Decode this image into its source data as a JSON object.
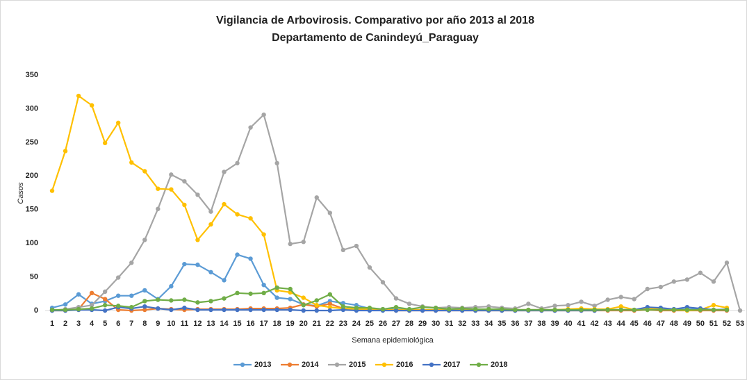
{
  "chart_data": {
    "type": "line",
    "title": "Vigilancia de Arbovirosis. Comparativo por año 2013 al 2018",
    "subtitle": "Departamento de Canindeyú_Paraguay",
    "x_label": "Semana epidemiológica",
    "y_label": "Casos",
    "categories": [
      1,
      2,
      3,
      4,
      5,
      6,
      7,
      8,
      9,
      10,
      11,
      12,
      13,
      14,
      15,
      16,
      17,
      18,
      19,
      20,
      21,
      22,
      23,
      24,
      25,
      26,
      27,
      28,
      29,
      30,
      31,
      32,
      33,
      34,
      35,
      36,
      37,
      38,
      39,
      40,
      41,
      42,
      43,
      44,
      45,
      46,
      47,
      48,
      49,
      50,
      51,
      52,
      53
    ],
    "ylim": [
      0,
      350
    ],
    "yticks": [
      0,
      50,
      100,
      150,
      200,
      250,
      300,
      350
    ],
    "grid": false,
    "legend": "bottom",
    "series": [
      {
        "name": "2013",
        "color": "#5b9bd5",
        "values": [
          4,
          9,
          24,
          10,
          14,
          22,
          22,
          30,
          17,
          36,
          69,
          68,
          57,
          45,
          83,
          77,
          38,
          19,
          17,
          9,
          7,
          14,
          11,
          8,
          3,
          2,
          2,
          1,
          1,
          1,
          1,
          1,
          1,
          1,
          1,
          1,
          1,
          1,
          1,
          1,
          1,
          1,
          1,
          1,
          1,
          2,
          2,
          1,
          2,
          2,
          1,
          2,
          null
        ]
      },
      {
        "name": "2014",
        "color": "#ed7d31",
        "values": [
          0,
          0,
          2,
          26,
          17,
          1,
          0,
          1,
          3,
          2,
          1,
          2,
          2,
          2,
          2,
          3,
          3,
          3,
          4,
          9,
          6,
          10,
          3,
          2,
          1,
          1,
          0,
          0,
          0,
          0,
          0,
          0,
          0,
          0,
          0,
          0,
          0,
          0,
          0,
          0,
          0,
          0,
          0,
          0,
          0,
          1,
          0,
          0,
          0,
          0,
          0,
          0,
          null
        ]
      },
      {
        "name": "2015",
        "color": "#a5a5a5",
        "values": [
          0,
          2,
          5,
          8,
          28,
          49,
          71,
          105,
          151,
          202,
          192,
          172,
          147,
          206,
          219,
          272,
          291,
          219,
          99,
          102,
          168,
          145,
          90,
          96,
          64,
          42,
          18,
          10,
          6,
          4,
          5,
          4,
          5,
          6,
          4,
          3,
          10,
          3,
          7,
          8,
          13,
          7,
          16,
          20,
          17,
          32,
          35,
          43,
          46,
          56,
          43,
          71,
          0
        ]
      },
      {
        "name": "2016",
        "color": "#ffc000",
        "values": [
          178,
          237,
          319,
          305,
          249,
          279,
          220,
          207,
          181,
          180,
          157,
          105,
          128,
          158,
          143,
          137,
          113,
          30,
          27,
          19,
          8,
          5,
          3,
          2,
          2,
          1,
          1,
          1,
          1,
          1,
          1,
          1,
          1,
          1,
          1,
          1,
          1,
          1,
          1,
          2,
          3,
          2,
          2,
          6,
          1,
          3,
          2,
          1,
          0,
          1,
          8,
          4,
          null
        ]
      },
      {
        "name": "2017",
        "color": "#4472c4",
        "values": [
          0,
          0,
          1,
          1,
          0,
          5,
          3,
          6,
          3,
          1,
          4,
          1,
          1,
          1,
          1,
          1,
          1,
          1,
          1,
          0,
          0,
          0,
          1,
          0,
          0,
          0,
          0,
          0,
          0,
          0,
          0,
          0,
          0,
          0,
          0,
          0,
          0,
          0,
          0,
          0,
          0,
          0,
          1,
          1,
          1,
          5,
          4,
          2,
          5,
          3,
          1,
          1,
          null
        ]
      },
      {
        "name": "2018",
        "color": "#70ad47",
        "values": [
          1,
          1,
          2,
          3,
          8,
          7,
          5,
          14,
          16,
          15,
          16,
          12,
          14,
          18,
          26,
          25,
          26,
          34,
          32,
          8,
          15,
          24,
          6,
          4,
          4,
          2,
          5,
          2,
          5,
          4,
          2,
          3,
          2,
          2,
          2,
          1,
          1,
          1,
          1,
          1,
          1,
          1,
          1,
          1,
          1,
          1,
          1,
          1,
          1,
          1,
          1,
          1,
          null
        ]
      }
    ]
  }
}
